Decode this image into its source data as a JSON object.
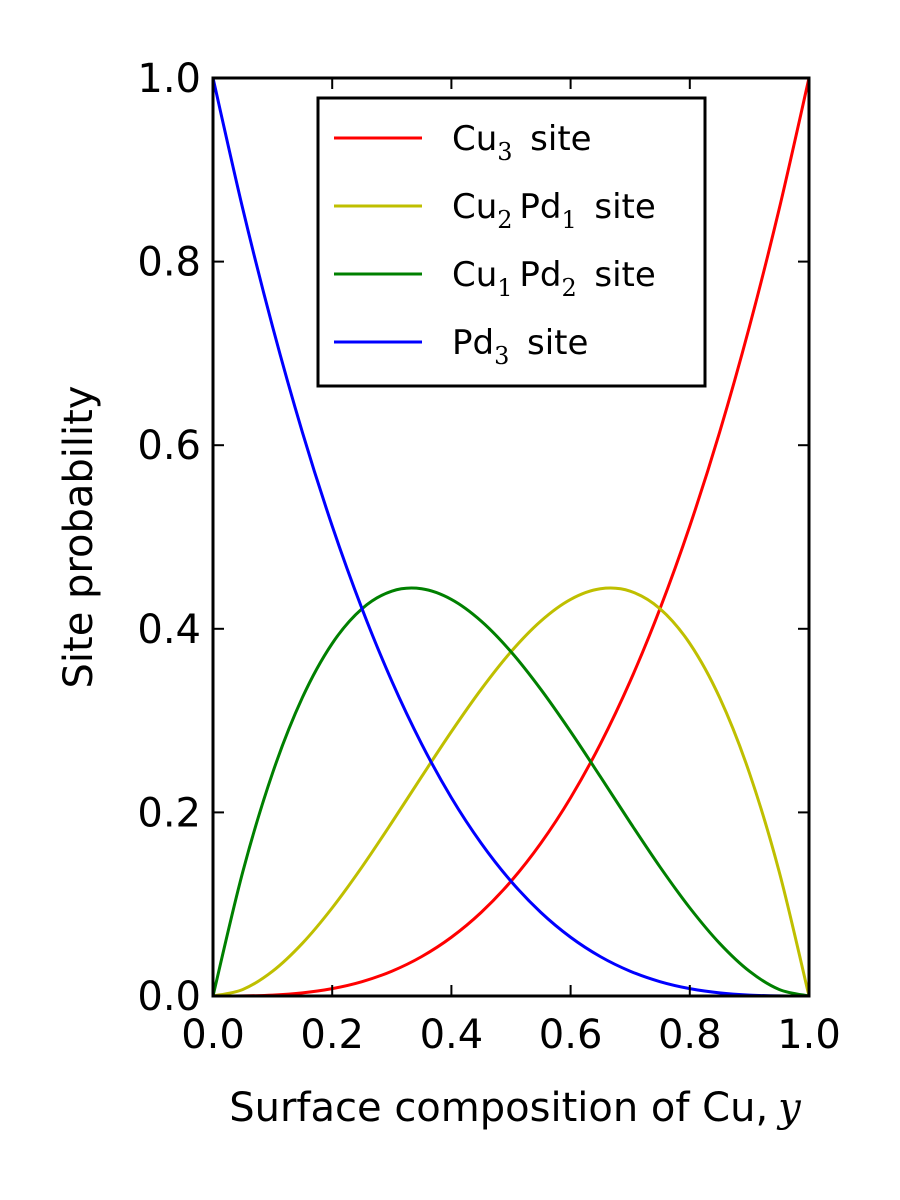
{
  "chart_data": {
    "type": "line",
    "xlabel": "Surface composition of Cu,",
    "xlabel_var": "y",
    "ylabel": "Site probability",
    "xlim": [
      0.0,
      1.0
    ],
    "ylim": [
      0.0,
      1.0
    ],
    "x_ticks": [
      "0.0",
      "0.2",
      "0.4",
      "0.6",
      "0.8",
      "1.0"
    ],
    "y_ticks": [
      "0.0",
      "0.2",
      "0.4",
      "0.6",
      "0.8",
      "1.0"
    ],
    "grid": false,
    "legend_position": "top-center",
    "x": [
      0.0,
      0.05,
      0.1,
      0.15,
      0.2,
      0.25,
      0.3,
      0.35,
      0.4,
      0.45,
      0.5,
      0.55,
      0.6,
      0.65,
      0.7,
      0.75,
      0.8,
      0.85,
      0.9,
      0.95,
      1.0
    ],
    "series": [
      {
        "name": "Cu3 site",
        "legend": [
          {
            "t": "Cu"
          },
          {
            "s": "3"
          },
          {
            "t": " site"
          }
        ],
        "color": "#ff0000",
        "values": [
          0.0,
          0.0001,
          0.001,
          0.0034,
          0.008,
          0.0156,
          0.027,
          0.0429,
          0.064,
          0.0911,
          0.125,
          0.1664,
          0.216,
          0.2746,
          0.343,
          0.4219,
          0.512,
          0.6141,
          0.729,
          0.8574,
          1.0
        ]
      },
      {
        "name": "Cu2Pd1 site",
        "legend": [
          {
            "t": "Cu"
          },
          {
            "s": "2"
          },
          {
            "t": "Pd"
          },
          {
            "s": "1"
          },
          {
            "t": " site"
          }
        ],
        "color": "#bfbf00",
        "values": [
          0.0,
          0.0071,
          0.027,
          0.0574,
          0.096,
          0.1406,
          0.189,
          0.2389,
          0.288,
          0.3341,
          0.375,
          0.4084,
          0.432,
          0.4436,
          0.441,
          0.4219,
          0.384,
          0.3251,
          0.243,
          0.1354,
          0.0
        ]
      },
      {
        "name": "Cu1Pd2 site",
        "legend": [
          {
            "t": "Cu"
          },
          {
            "s": "1"
          },
          {
            "t": "Pd"
          },
          {
            "s": "2"
          },
          {
            "t": " site"
          }
        ],
        "color": "#008000",
        "values": [
          0.0,
          0.1354,
          0.243,
          0.3251,
          0.384,
          0.4219,
          0.441,
          0.4436,
          0.432,
          0.4084,
          0.375,
          0.3341,
          0.288,
          0.2389,
          0.189,
          0.1406,
          0.096,
          0.0574,
          0.027,
          0.0071,
          0.0
        ]
      },
      {
        "name": "Pd3 site",
        "legend": [
          {
            "t": "Pd"
          },
          {
            "s": "3"
          },
          {
            "t": " site"
          }
        ],
        "color": "#0000ff",
        "values": [
          1.0,
          0.8574,
          0.729,
          0.6141,
          0.512,
          0.4219,
          0.343,
          0.2746,
          0.216,
          0.1664,
          0.125,
          0.0911,
          0.064,
          0.0429,
          0.027,
          0.0156,
          0.008,
          0.0034,
          0.001,
          0.0001,
          0.0
        ]
      }
    ]
  }
}
